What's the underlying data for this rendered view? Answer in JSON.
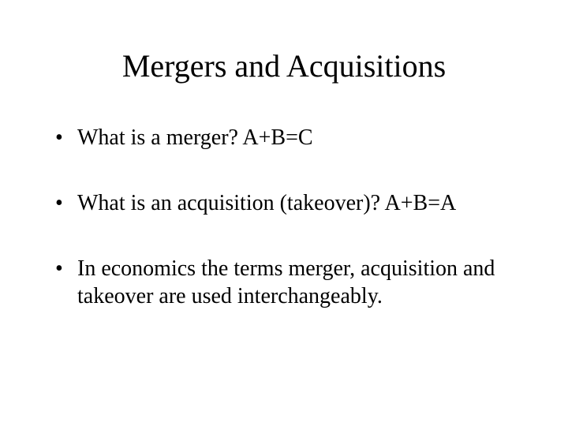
{
  "slide": {
    "title": "Mergers and Acquisitions",
    "title_fontsize": 40,
    "body_fontsize": 28,
    "bullets": [
      "What is a merger?  A+B=C",
      "What is an acquisition (takeover)? A+B=A",
      "In economics the terms merger, acquisition and takeover are used interchangeably."
    ],
    "background_color": "#ffffff",
    "text_color": "#000000",
    "font_family": "Times New Roman"
  }
}
